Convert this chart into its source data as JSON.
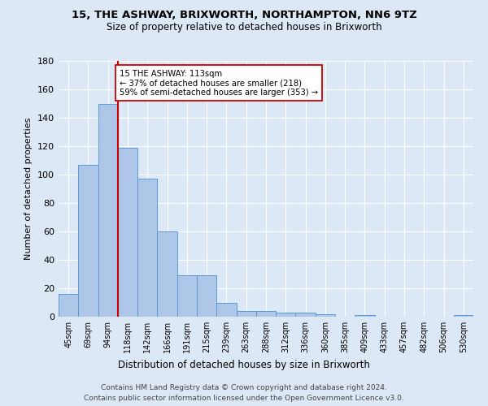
{
  "title": "15, THE ASHWAY, BRIXWORTH, NORTHAMPTON, NN6 9TZ",
  "subtitle": "Size of property relative to detached houses in Brixworth",
  "xlabel": "Distribution of detached houses by size in Brixworth",
  "ylabel": "Number of detached properties",
  "bin_labels": [
    "45sqm",
    "69sqm",
    "94sqm",
    "118sqm",
    "142sqm",
    "166sqm",
    "191sqm",
    "215sqm",
    "239sqm",
    "263sqm",
    "288sqm",
    "312sqm",
    "336sqm",
    "360sqm",
    "385sqm",
    "409sqm",
    "433sqm",
    "457sqm",
    "482sqm",
    "506sqm",
    "530sqm"
  ],
  "bar_values": [
    16,
    107,
    150,
    119,
    97,
    60,
    29,
    29,
    10,
    4,
    4,
    3,
    3,
    2,
    0,
    1,
    0,
    0,
    0,
    0,
    1
  ],
  "bar_color": "#aec6e8",
  "bar_edge_color": "#5b9bd5",
  "annotation_text": "15 THE ASHWAY: 113sqm\n← 37% of detached houses are smaller (218)\n59% of semi-detached houses are larger (353) →",
  "annotation_box_color": "#ffffff",
  "annotation_box_edge": "#cc0000",
  "vline_color": "#cc0000",
  "ylim": [
    0,
    180
  ],
  "background_color": "#dce8f5",
  "plot_bg_color": "#dce8f5",
  "footer_line1": "Contains HM Land Registry data © Crown copyright and database right 2024.",
  "footer_line2": "Contains public sector information licensed under the Open Government Licence v3.0."
}
